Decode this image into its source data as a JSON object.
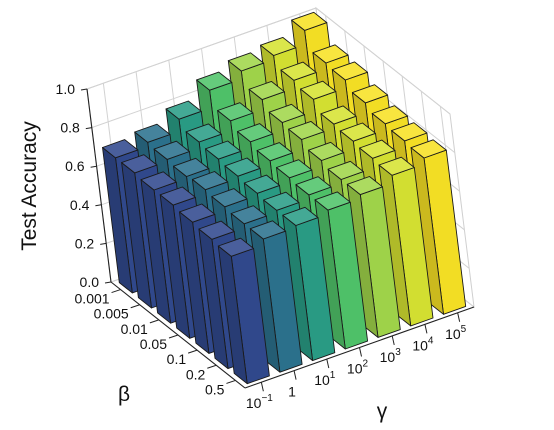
{
  "chart_data": {
    "type": "bar3d",
    "title": "",
    "zlabel": "Test Accuracy",
    "xlabel": "γ",
    "ylabel": "β",
    "zlim": [
      0.0,
      1.0
    ],
    "z_ticks": [
      "0.0",
      "0.2",
      "0.4",
      "0.6",
      "0.8",
      "1.0"
    ],
    "x_categories": [
      {
        "base": "10",
        "exp": "−1"
      },
      {
        "base": "1",
        "exp": ""
      },
      {
        "base": "10",
        "exp": "1"
      },
      {
        "base": "10",
        "exp": "2"
      },
      {
        "base": "10",
        "exp": "3"
      },
      {
        "base": "10",
        "exp": "4"
      },
      {
        "base": "10",
        "exp": "5"
      }
    ],
    "y_categories": [
      "0.001",
      "0.005",
      "0.01",
      "0.05",
      "0.1",
      "0.2",
      "0.5"
    ],
    "colormap": "viridis",
    "bar_colors": [
      "#31498e",
      "#2c728e",
      "#2a9d86",
      "#50c46a",
      "#a1d64a",
      "#d6e332",
      "#f7e125"
    ],
    "values": [
      [
        0.7,
        0.72,
        0.78,
        0.87,
        0.91,
        0.93,
        1.0
      ],
      [
        0.7,
        0.71,
        0.74,
        0.79,
        0.84,
        0.88,
        0.91
      ],
      [
        0.69,
        0.7,
        0.73,
        0.76,
        0.8,
        0.86,
        0.9
      ],
      [
        0.69,
        0.71,
        0.72,
        0.74,
        0.79,
        0.81,
        0.86
      ],
      [
        0.68,
        0.7,
        0.71,
        0.73,
        0.76,
        0.8,
        0.83
      ],
      [
        0.67,
        0.69,
        0.7,
        0.72,
        0.74,
        0.79,
        0.82
      ],
      [
        0.66,
        0.69,
        0.7,
        0.72,
        0.74,
        0.78,
        0.81
      ]
    ],
    "grid": true,
    "legend": "none"
  }
}
